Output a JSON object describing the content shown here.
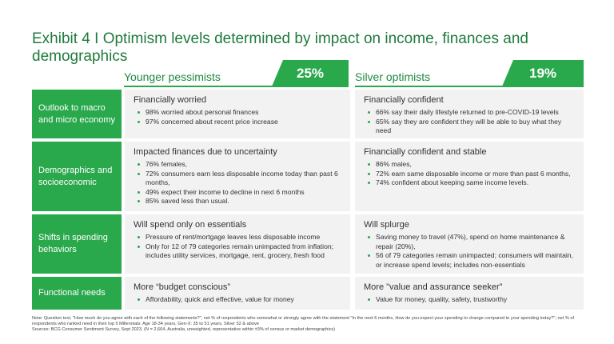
{
  "title": "Exhibit 4 I Optimism levels determined by impact on income, finances and demographics",
  "segments": [
    {
      "label": "Younger pessimists",
      "percent": "25%"
    },
    {
      "label": "Silver optimists",
      "percent": "19%"
    }
  ],
  "rows": [
    {
      "label": "Outlook to macro and micro economy",
      "left": {
        "head": "Financially worried",
        "items": [
          "98% worried about personal finances",
          "97% concerned about recent price increase"
        ]
      },
      "right": {
        "head": "Financially confident",
        "items": [
          "66% say their daily lifestyle returned to pre-COVID-19 levels",
          "65% say they are confident they will be able to buy what they need"
        ]
      }
    },
    {
      "label": "Demographics and socioeconomic",
      "left": {
        "head": "Impacted finances due to uncertainty",
        "items": [
          "76% females,",
          "72% consumers earn less disposable income today than past 6 months,",
          "49% expect their income to decline in next 6 months",
          "85% saved less than usual."
        ]
      },
      "right": {
        "head": "Financially confident and stable",
        "items": [
          "86% males,",
          "72% earn same disposable income or more than past 6 months,",
          "74% confident about keeping same income levels."
        ]
      }
    },
    {
      "label": "Shifts in spending behaviors",
      "left": {
        "head": "Will spend only on essentials",
        "items": [
          "Pressure of rent/mortgage leaves less disposable income",
          "Only for 12 of 79 categories remain unimpacted from inflation; includes utility services, mortgage, rent, grocery, fresh food"
        ]
      },
      "right": {
        "head": "Will splurge",
        "items": [
          "Saving money to travel (47%), spend on home maintenance & repair (20%),",
          "56 of 79 categories remain unimpacted; consumers will maintain, or increase spend levels; includes non-essentials"
        ]
      }
    },
    {
      "label": "Functional needs",
      "left": {
        "head": "More “budget conscious”",
        "items": [
          "Affordability, quick and effective, value for money"
        ]
      },
      "right": {
        "head": "More \"value and assurance seeker\"",
        "items": [
          "Value for money, quality, safety, trustworthy"
        ]
      }
    }
  ],
  "note": "Note: Question text, \"How much do you agree with each of the following statements?\", net % of respondents who somewhat or strongly agree with the statement \"In the next 6 months, How do you expect your spending to change compared to your spending today?\"; net % of respondents who ranked need in their top 5 Millennials: Age 18-34 years, Gen-X: 35 to 51 years, Silver 52 & above",
  "sources": "Sources: BCG Consumer Sentiment Survey, Sept 2023, (N = 2,664, Australia, unweighted, representative within ±3% of census or market demographics)"
}
